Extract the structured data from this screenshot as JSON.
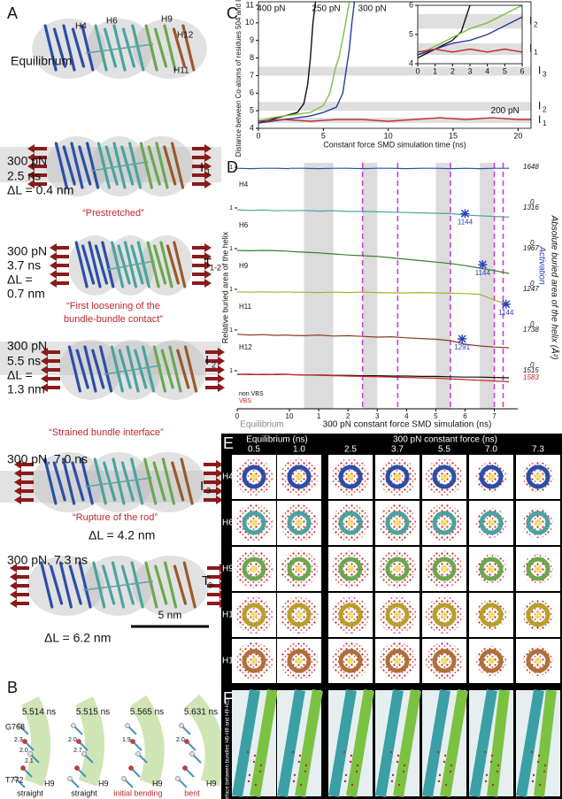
{
  "panel_a": {
    "label": "A",
    "equilibrium": "Equilibrium",
    "helices": [
      "H4",
      "H6",
      "H9",
      "H12",
      "H11"
    ],
    "scale_bar": "5 nm",
    "states": [
      {
        "lines": [
          "300 pN",
          "2.5 ns",
          "ΔL = 0.4 nm"
        ],
        "state": "I",
        "sub": "1",
        "caption": [
          "“Prestretched”"
        ]
      },
      {
        "lines": [
          "300 pN",
          "3.7 ns",
          "ΔL =",
          "0.7 nm"
        ],
        "state": "T",
        "sub": "1-2",
        "caption": [
          "“First loosening of the",
          "bundle-bundle contact”"
        ]
      },
      {
        "lines": [
          "300 pN",
          "5.5 ns",
          "ΔL =",
          "1.3 nm"
        ],
        "state": "I",
        "sub": "2",
        "caption": [
          "“Strained bundle interface”"
        ]
      },
      {
        "lines": [
          "300 pN, 7.0 ns"
        ],
        "dl": "ΔL = 4.2 nm",
        "state": "I",
        "sub": "3",
        "caption": [
          "“Rupture of the rod”"
        ]
      },
      {
        "lines": [
          "300 pN, 7.3 ns"
        ],
        "dl": "ΔL = 6.2 nm",
        "state": "T",
        "sub": "3-"
      }
    ]
  },
  "panel_b": {
    "label": "B",
    "residues": [
      "G768",
      "T772"
    ],
    "helix": "H9",
    "frames": [
      {
        "time": "5.514 ns",
        "state": "straight",
        "distances": [
          "2.3",
          "2.0",
          "2.1"
        ]
      },
      {
        "time": "5.515 ns",
        "state": "straight",
        "distances": [
          "2.0",
          "2.7"
        ]
      },
      {
        "time": "5.565 ns",
        "state": "initial bending",
        "distances": [
          "1.9"
        ]
      },
      {
        "time": "5.631 ns",
        "state": "bent",
        "distances": [
          "2.0"
        ]
      }
    ]
  },
  "chart_data": [
    {
      "type": "line",
      "label": "C",
      "ylabel": "Distance between Cα-atoms of residues 504 and 865 (nm)",
      "xlabel": "Constant force SMD simulation time (ns)",
      "xlim": [
        0,
        21
      ],
      "ylim": [
        4,
        11.2
      ],
      "xticks": [
        0,
        5,
        10,
        15,
        20
      ],
      "yticks": [
        4,
        5,
        6,
        7,
        8,
        9,
        10,
        11
      ],
      "bands": [
        {
          "range": [
            7.0,
            7.5
          ],
          "state": "I",
          "sub": "3"
        },
        {
          "range": [
            5.0,
            5.5
          ],
          "state": "I",
          "sub": "2"
        },
        {
          "range": [
            4.3,
            4.6
          ],
          "state": "I",
          "sub": "1"
        }
      ],
      "series": [
        {
          "name": "400 pN",
          "color": "#111111",
          "x": [
            0,
            1,
            2,
            3,
            3.5,
            3.8,
            4.0,
            4.2,
            4.4
          ],
          "values": [
            4.3,
            4.5,
            4.7,
            4.9,
            5.4,
            6.5,
            8.0,
            10.0,
            11.2
          ]
        },
        {
          "name": "250 pN",
          "color": "#7dc142",
          "x": [
            0,
            1,
            2,
            3,
            4,
            5,
            5.5,
            5.8,
            6.0,
            6.2,
            6.6,
            7.0
          ],
          "values": [
            4.4,
            4.6,
            4.7,
            4.8,
            4.9,
            5.3,
            6.0,
            7.0,
            7.6,
            8.0,
            9.5,
            11.2
          ]
        },
        {
          "name": "300 pN",
          "color": "#2a3aa0",
          "x": [
            0,
            1,
            2,
            3,
            4,
            5,
            6,
            6.5,
            6.8,
            7.0,
            7.2,
            7.4
          ],
          "values": [
            4.3,
            4.4,
            4.5,
            4.6,
            4.7,
            4.9,
            5.2,
            6.0,
            7.5,
            8.5,
            10.0,
            11.2
          ]
        },
        {
          "name": "200 pN",
          "color": "#c0272d",
          "x": [
            0,
            2,
            4,
            6,
            8,
            10,
            12,
            14,
            16,
            18,
            20,
            21
          ],
          "values": [
            4.4,
            4.5,
            4.4,
            4.5,
            4.5,
            4.4,
            4.5,
            4.6,
            4.5,
            4.6,
            4.5,
            4.5
          ]
        }
      ]
    },
    {
      "type": "line",
      "xlim": [
        0,
        6
      ],
      "ylim": [
        4,
        6
      ],
      "xticks": [
        0,
        1,
        2,
        3,
        4,
        5,
        6
      ],
      "yticks": [
        4,
        5,
        6
      ],
      "bands": [
        {
          "range": [
            5.2,
            5.7
          ],
          "state": "I",
          "sub": "2"
        },
        {
          "range": [
            4.3,
            4.7
          ],
          "state": "I",
          "sub": "1"
        }
      ],
      "series": [
        {
          "color": "#111111",
          "x": [
            0,
            1,
            2,
            2.5,
            3
          ],
          "values": [
            4.2,
            4.5,
            4.8,
            5.1,
            6.0
          ]
        },
        {
          "color": "#7dc142",
          "x": [
            0,
            1,
            2,
            3,
            4,
            5,
            6
          ],
          "values": [
            4.3,
            4.6,
            4.9,
            5.2,
            5.4,
            5.7,
            6.0
          ]
        },
        {
          "color": "#2a3aa0",
          "x": [
            0,
            1,
            2,
            3,
            4,
            5,
            6
          ],
          "values": [
            4.3,
            4.5,
            4.7,
            4.8,
            5.0,
            5.3,
            5.6
          ]
        },
        {
          "color": "#c0272d",
          "x": [
            0,
            1,
            2,
            3,
            4,
            5,
            6
          ],
          "values": [
            4.4,
            4.5,
            4.4,
            4.5,
            4.4,
            4.5,
            4.4
          ]
        }
      ]
    },
    {
      "type": "line",
      "label": "D",
      "ylabel": "Relative buried area of the helix",
      "y2label": "Absolute buried area of the helix (Å²)",
      "activation": "Activation",
      "xlabel": "300 pN constant force SMD simulation (ns)",
      "eq_label": "Equilibrium",
      "eq_xlim": [
        0,
        10
      ],
      "eq_xticks": [
        0,
        10
      ],
      "eq_x": [
        0,
        2.5,
        5,
        7.5,
        10
      ],
      "xlim": [
        0,
        7.8
      ],
      "xticks": [
        1,
        2,
        3,
        4,
        5,
        6,
        7
      ],
      "x": [
        0,
        0.5,
        1,
        1.5,
        2,
        2.5,
        3,
        3.5,
        4,
        4.5,
        5,
        5.5,
        6,
        6.5,
        7,
        7.5
      ],
      "ylim": [
        0,
        1
      ],
      "yticks": [
        1
      ],
      "bands": [
        [
          0.5,
          1.5
        ],
        [
          2.5,
          3.0
        ],
        [
          5.0,
          5.5
        ],
        [
          6.5,
          7.0
        ]
      ],
      "events": [
        2.5,
        3.7,
        5.5,
        7.0,
        7.3
      ],
      "tracks": [
        {
          "name": "H4",
          "abs_min": 0,
          "series": [
            {
              "color": "#2b4fa8",
              "abs": 1648,
              "eq_values": [
                0.97,
                0.96,
                0.97,
                0.97,
                0.96
              ],
              "values": [
                0.97,
                0.97,
                0.96,
                0.97,
                0.97,
                0.96,
                0.97,
                0.97,
                0.96,
                0.97,
                0.97,
                0.96,
                0.97,
                0.96,
                0.97,
                0.97
              ]
            }
          ]
        },
        {
          "name": "H6",
          "abs_min": 0,
          "series": [
            {
              "color": "#4aa3a0",
              "abs": 1316,
              "eq_values": [
                0.95,
                0.93,
                0.94,
                0.92,
                0.93
              ],
              "values": [
                0.92,
                0.93,
                0.91,
                0.92,
                0.9,
                0.9,
                0.89,
                0.88,
                0.87,
                0.86,
                0.85,
                0.84,
                0.8,
                0.78,
                0.76,
                0.74
              ],
              "marker": {
                "x": 6.0,
                "value": 0.84,
                "label": 1144
              }
            }
          ]
        },
        {
          "name": "H9",
          "abs_min": 0,
          "series": [
            {
              "color": "#3a7d2a",
              "abs": 1967,
              "eq_values": [
                0.95,
                0.94,
                0.95,
                0.94,
                0.93
              ],
              "values": [
                0.92,
                0.9,
                0.88,
                0.85,
                0.82,
                0.8,
                0.78,
                0.74,
                0.7,
                0.66,
                0.62,
                0.58,
                0.52,
                0.45,
                0.38,
                0.3
              ],
              "marker": {
                "x": 6.6,
                "value": 0.55,
                "label": 1144
              }
            }
          ]
        },
        {
          "name": "H11",
          "abs_min": 0,
          "series": [
            {
              "color": "#a8b030",
              "abs": 1247,
              "eq_values": [
                0.93,
                0.92,
                0.93,
                0.92,
                0.93
              ],
              "values": [
                0.92,
                0.92,
                0.91,
                0.92,
                0.91,
                0.92,
                0.91,
                0.9,
                0.9,
                0.91,
                0.9,
                0.89,
                0.88,
                0.86,
                0.7,
                0.55
              ],
              "marker": {
                "x": 7.4,
                "value": 0.58,
                "label": 1144
              }
            }
          ]
        },
        {
          "name": "H12",
          "abs_min": 0,
          "series": [
            {
              "color": "#8b3a2a",
              "abs": 1738,
              "eq_values": [
                0.88,
                0.86,
                0.87,
                0.85,
                0.86
              ],
              "values": [
                0.85,
                0.84,
                0.86,
                0.83,
                0.84,
                0.82,
                0.8,
                0.81,
                0.78,
                0.76,
                0.74,
                0.7,
                0.6,
                0.55,
                0.52,
                0.5
              ],
              "marker": {
                "x": 5.9,
                "value": 0.75,
                "label": 1291
              }
            }
          ]
        },
        {
          "series": [
            {
              "name": "non VBS",
              "color": "#111111",
              "abs": 1515,
              "eq_values": [
                0.9,
                0.9,
                0.89,
                0.9,
                0.9
              ],
              "values": [
                0.89,
                0.88,
                0.88,
                0.87,
                0.87,
                0.86,
                0.86,
                0.85,
                0.85,
                0.84,
                0.84,
                0.83,
                0.82,
                0.82,
                0.81,
                0.8
              ]
            },
            {
              "name": "VBS",
              "color": "#cc2222",
              "abs": 1583,
              "eq_values": [
                0.9,
                0.89,
                0.9,
                0.89,
                0.9
              ],
              "values": [
                0.89,
                0.88,
                0.87,
                0.86,
                0.85,
                0.84,
                0.83,
                0.82,
                0.81,
                0.8,
                0.79,
                0.77,
                0.75,
                0.73,
                0.71,
                0.69
              ]
            }
          ]
        }
      ]
    }
  ],
  "panel_e": {
    "label": "E",
    "groups": [
      {
        "title": "Equilibrium (ns)",
        "times": [
          "0.5",
          "1.0"
        ]
      },
      {
        "title": "300 pN constant force (ns)",
        "times": [
          "2.5",
          "3.7",
          "5.5",
          "7.0",
          "7.3"
        ]
      }
    ],
    "rows": [
      "H4",
      "H6",
      "H9",
      "H11",
      "H12"
    ]
  },
  "panel_f": {
    "label": "F",
    "caption": "Interface between bundles H6-H8 and H9-H12"
  }
}
